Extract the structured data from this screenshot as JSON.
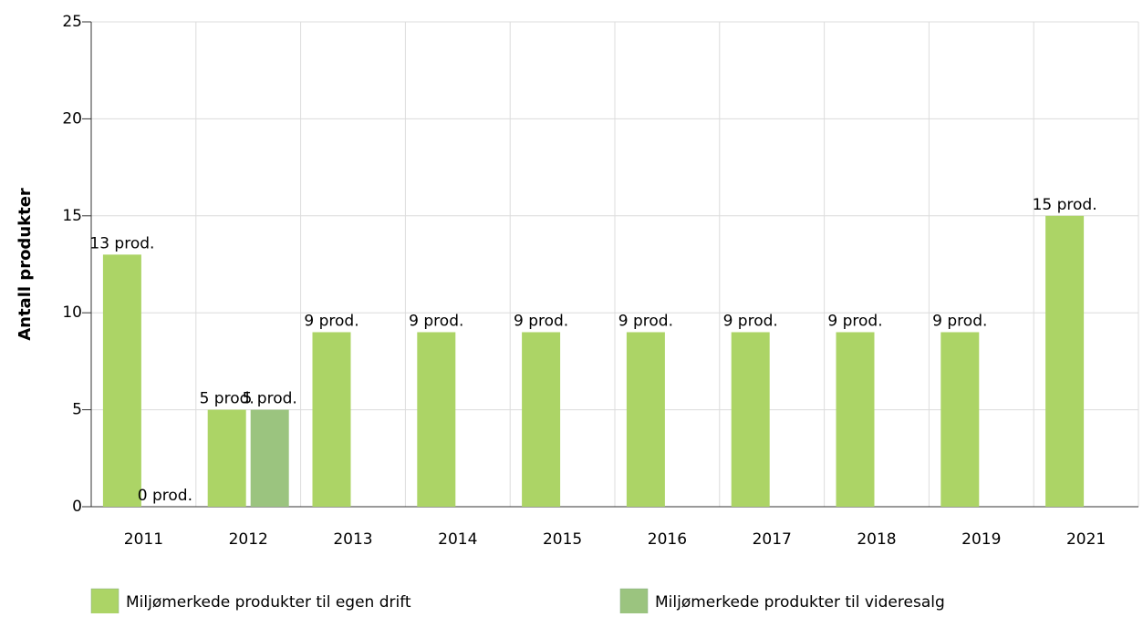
{
  "chart_data": {
    "type": "bar",
    "y_label": "Antall produkter",
    "categories": [
      "2011",
      "2012",
      "2013",
      "2014",
      "2015",
      "2016",
      "2017",
      "2018",
      "2019",
      "2021"
    ],
    "series": [
      {
        "name": "Miljømerkede produkter til egen drift",
        "color": "#acd466",
        "values": [
          13,
          5,
          9,
          9,
          9,
          9,
          9,
          9,
          9,
          15
        ],
        "value_labels": [
          "13 prod.",
          "5 prod.",
          "9 prod.",
          "9 prod.",
          "9 prod.",
          "9 prod.",
          "9 prod.",
          "9 prod.",
          "9 prod.",
          "15 prod."
        ]
      },
      {
        "name": "Miljømerkede produkter til videresalg",
        "color": "#9bc47f",
        "values": [
          0,
          5,
          null,
          null,
          null,
          null,
          null,
          null,
          null,
          null
        ],
        "value_labels": [
          "0 prod.",
          "5 prod.",
          null,
          null,
          null,
          null,
          null,
          null,
          null,
          null
        ]
      }
    ],
    "ylim": [
      0,
      25
    ],
    "yticks": [
      0,
      5,
      10,
      15,
      20,
      25
    ],
    "grid": true
  }
}
